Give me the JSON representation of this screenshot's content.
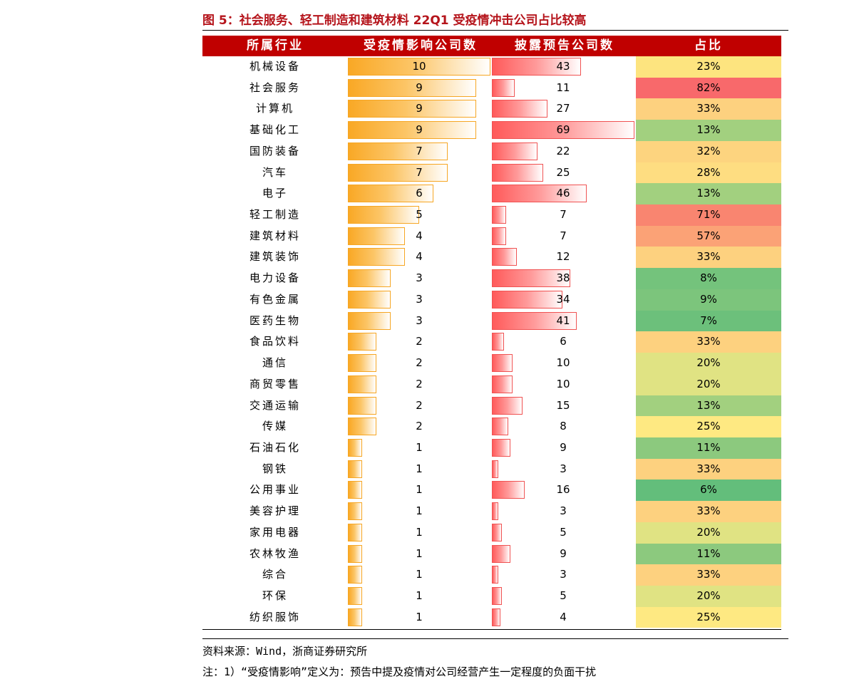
{
  "title": "图 5：社会服务、轻工制造和建筑材料 22Q1 受疫情冲击公司占比较高",
  "source": "资料来源：Wind，浙商证券研究所",
  "note": "注：1）“受疫情影响”定义为：预告中提及疫情对公司经营产生一定程度的负面干扰",
  "colors": {
    "header_bg": "#c00000",
    "title": "#b5141b",
    "bar_affected": "#f9a825",
    "bar_disclosed": "#ff5a5a"
  },
  "chart_data": {
    "type": "table",
    "columns": [
      "所属行业",
      "受疫情影响公司数",
      "披露预告公司数",
      "占比"
    ],
    "rows": [
      {
        "industry": "机械设备",
        "affected": 10,
        "disclosed": 43,
        "ratio": "23%",
        "color": "#fde47f"
      },
      {
        "industry": "社会服务",
        "affected": 9,
        "disclosed": 11,
        "ratio": "82%",
        "color": "#f8696b"
      },
      {
        "industry": "计算机",
        "affected": 9,
        "disclosed": 27,
        "ratio": "33%",
        "color": "#fdd17f"
      },
      {
        "industry": "基础化工",
        "affected": 9,
        "disclosed": 69,
        "ratio": "13%",
        "color": "#a2d07f"
      },
      {
        "industry": "国防装备",
        "affected": 7,
        "disclosed": 22,
        "ratio": "32%",
        "color": "#fdd47f"
      },
      {
        "industry": "汽车",
        "affected": 7,
        "disclosed": 25,
        "ratio": "28%",
        "color": "#fedd81"
      },
      {
        "industry": "电子",
        "affected": 6,
        "disclosed": 46,
        "ratio": "13%",
        "color": "#a2d07f"
      },
      {
        "industry": "轻工制造",
        "affected": 5,
        "disclosed": 7,
        "ratio": "71%",
        "color": "#f98570"
      },
      {
        "industry": "建筑材料",
        "affected": 4,
        "disclosed": 7,
        "ratio": "57%",
        "color": "#fba276"
      },
      {
        "industry": "建筑装饰",
        "affected": 4,
        "disclosed": 12,
        "ratio": "33%",
        "color": "#fdd17f"
      },
      {
        "industry": "电力设备",
        "affected": 3,
        "disclosed": 38,
        "ratio": "8%",
        "color": "#74c37c"
      },
      {
        "industry": "有色金属",
        "affected": 3,
        "disclosed": 34,
        "ratio": "9%",
        "color": "#7cc57c"
      },
      {
        "industry": "医药生物",
        "affected": 3,
        "disclosed": 41,
        "ratio": "7%",
        "color": "#6cc07b"
      },
      {
        "industry": "食品饮料",
        "affected": 2,
        "disclosed": 6,
        "ratio": "33%",
        "color": "#fdd17f"
      },
      {
        "industry": "通信",
        "affected": 2,
        "disclosed": 10,
        "ratio": "20%",
        "color": "#e0e383"
      },
      {
        "industry": "商贸零售",
        "affected": 2,
        "disclosed": 10,
        "ratio": "20%",
        "color": "#e0e383"
      },
      {
        "industry": "交通运输",
        "affected": 2,
        "disclosed": 15,
        "ratio": "13%",
        "color": "#a2d07f"
      },
      {
        "industry": "传媒",
        "affected": 2,
        "disclosed": 8,
        "ratio": "25%",
        "color": "#fee982"
      },
      {
        "industry": "石油石化",
        "affected": 1,
        "disclosed": 9,
        "ratio": "11%",
        "color": "#8cc97e"
      },
      {
        "industry": "钢铁",
        "affected": 1,
        "disclosed": 3,
        "ratio": "33%",
        "color": "#fdd17f"
      },
      {
        "industry": "公用事业",
        "affected": 1,
        "disclosed": 16,
        "ratio": "6%",
        "color": "#63be7b"
      },
      {
        "industry": "美容护理",
        "affected": 1,
        "disclosed": 3,
        "ratio": "33%",
        "color": "#fdd17f"
      },
      {
        "industry": "家用电器",
        "affected": 1,
        "disclosed": 5,
        "ratio": "20%",
        "color": "#e0e383"
      },
      {
        "industry": "农林牧渔",
        "affected": 1,
        "disclosed": 9,
        "ratio": "11%",
        "color": "#8cc97e"
      },
      {
        "industry": "综合",
        "affected": 1,
        "disclosed": 3,
        "ratio": "33%",
        "color": "#fdd17f"
      },
      {
        "industry": "环保",
        "affected": 1,
        "disclosed": 5,
        "ratio": "20%",
        "color": "#e0e383"
      },
      {
        "industry": "纺织服饰",
        "affected": 1,
        "disclosed": 4,
        "ratio": "25%",
        "color": "#fee982"
      }
    ],
    "affected_max": 10,
    "disclosed_max": 69
  }
}
